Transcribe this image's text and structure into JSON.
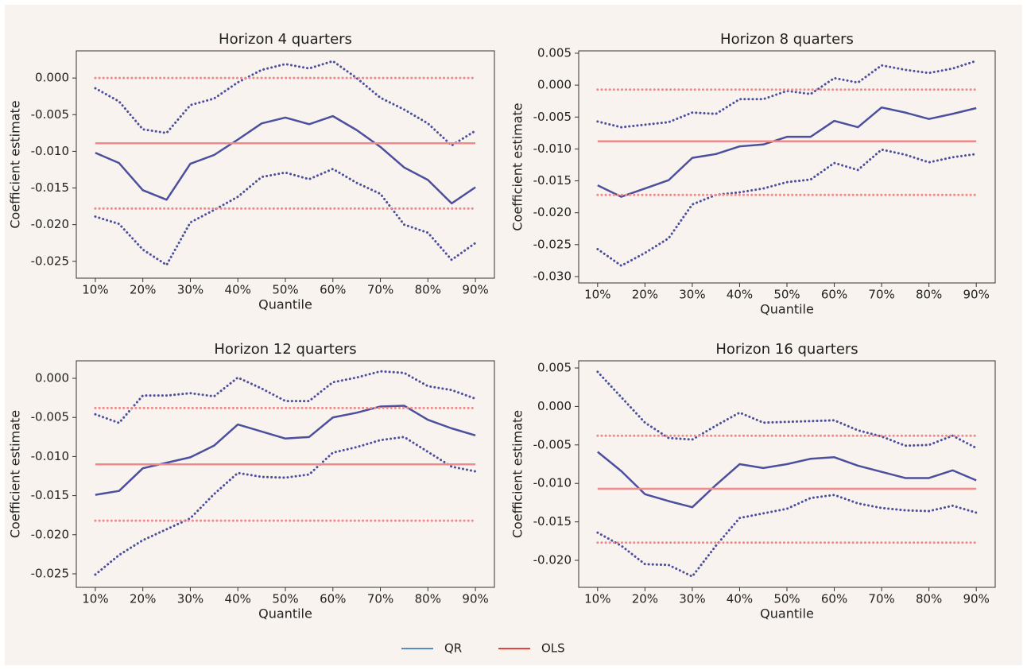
{
  "chart_data": [
    {
      "type": "line",
      "title": "Horizon 4 quarters",
      "xlabel": "Quantile",
      "ylabel": "Coefficient estimate",
      "x": [
        10,
        15,
        20,
        25,
        30,
        35,
        40,
        45,
        50,
        55,
        60,
        65,
        70,
        75,
        80,
        85,
        90
      ],
      "xlim": [
        6,
        94
      ],
      "ylim": [
        -0.0273,
        0.0037
      ],
      "xticks": [
        {
          "value": 10,
          "label": "10%"
        },
        {
          "value": 20,
          "label": "20%"
        },
        {
          "value": 30,
          "label": "30%"
        },
        {
          "value": 40,
          "label": "40%"
        },
        {
          "value": 50,
          "label": "50%"
        },
        {
          "value": 60,
          "label": "60%"
        },
        {
          "value": 70,
          "label": "70%"
        },
        {
          "value": 80,
          "label": "80%"
        },
        {
          "value": 90,
          "label": "90%"
        }
      ],
      "yticks": [
        {
          "value": -0.025,
          "label": "-0.025"
        },
        {
          "value": -0.02,
          "label": "-0.020"
        },
        {
          "value": -0.015,
          "label": "-0.015"
        },
        {
          "value": -0.01,
          "label": "-0.010"
        },
        {
          "value": -0.005,
          "label": "-0.005"
        },
        {
          "value": 0,
          "label": "0.000"
        }
      ],
      "series": [
        {
          "color": "#4c4f9e",
          "style": "solid",
          "values": [
            -0.0102,
            -0.0116,
            -0.0153,
            -0.0166,
            -0.0117,
            -0.0105,
            -0.0084,
            -0.0062,
            -0.0054,
            -0.0063,
            -0.0052,
            -0.0071,
            -0.0094,
            -0.0122,
            -0.0139,
            -0.0171,
            -0.0149
          ]
        },
        {
          "color": "#4c4f9e",
          "style": "dotted",
          "values": [
            -0.0014,
            -0.0032,
            -0.007,
            -0.0075,
            -0.0037,
            -0.0028,
            -0.0006,
            0.0011,
            0.0019,
            0.0013,
            0.0023,
            0.0,
            -0.0027,
            -0.0043,
            -0.0062,
            -0.0092,
            -0.0072
          ]
        },
        {
          "color": "#4c4f9e",
          "style": "dotted",
          "values": [
            -0.0189,
            -0.0199,
            -0.0234,
            -0.0255,
            -0.0197,
            -0.018,
            -0.0162,
            -0.0135,
            -0.0129,
            -0.0138,
            -0.0124,
            -0.0143,
            -0.0158,
            -0.02,
            -0.0211,
            -0.0248,
            -0.0225
          ]
        },
        {
          "color": "#f08a8a",
          "style": "solid",
          "values": [
            -0.0089,
            -0.0089,
            -0.0089,
            -0.0089,
            -0.0089,
            -0.0089,
            -0.0089,
            -0.0089,
            -0.0089,
            -0.0089,
            -0.0089,
            -0.0089,
            -0.0089,
            -0.0089,
            -0.0089,
            -0.0089,
            -0.0089
          ]
        },
        {
          "color": "#f08a8a",
          "style": "dotted",
          "values": [
            0.0,
            0.0,
            0.0,
            0.0,
            0.0,
            0.0,
            0.0,
            0.0,
            0.0,
            0.0,
            0.0,
            0.0,
            0.0,
            0.0,
            0.0,
            0.0,
            0.0
          ]
        },
        {
          "color": "#f08a8a",
          "style": "dotted",
          "values": [
            -0.0178,
            -0.0178,
            -0.0178,
            -0.0178,
            -0.0178,
            -0.0178,
            -0.0178,
            -0.0178,
            -0.0178,
            -0.0178,
            -0.0178,
            -0.0178,
            -0.0178,
            -0.0178,
            -0.0178,
            -0.0178,
            -0.0178
          ]
        }
      ]
    },
    {
      "type": "line",
      "title": "Horizon 8 quarters",
      "xlabel": "Quantile",
      "ylabel": "Coefficient estimate",
      "x": [
        10,
        15,
        20,
        25,
        30,
        35,
        40,
        45,
        50,
        55,
        60,
        65,
        70,
        75,
        80,
        85,
        90
      ],
      "xlim": [
        6,
        94
      ],
      "ylim": [
        -0.031,
        0.00537
      ],
      "xticks": [
        {
          "value": 10,
          "label": "10%"
        },
        {
          "value": 20,
          "label": "20%"
        },
        {
          "value": 30,
          "label": "30%"
        },
        {
          "value": 40,
          "label": "40%"
        },
        {
          "value": 50,
          "label": "50%"
        },
        {
          "value": 60,
          "label": "60%"
        },
        {
          "value": 70,
          "label": "70%"
        },
        {
          "value": 80,
          "label": "80%"
        },
        {
          "value": 90,
          "label": "90%"
        }
      ],
      "yticks": [
        {
          "value": -0.03,
          "label": "-0.030"
        },
        {
          "value": -0.025,
          "label": "-0.025"
        },
        {
          "value": -0.02,
          "label": "-0.020"
        },
        {
          "value": -0.015,
          "label": "-0.015"
        },
        {
          "value": -0.01,
          "label": "-0.010"
        },
        {
          "value": -0.005,
          "label": "-0.005"
        },
        {
          "value": 0,
          "label": "0.000"
        },
        {
          "value": 0.005,
          "label": "0.005"
        }
      ],
      "series": [
        {
          "color": "#4c4f9e",
          "style": "solid",
          "values": [
            -0.0157,
            -0.0175,
            -0.0162,
            -0.0149,
            -0.0114,
            -0.0108,
            -0.0096,
            -0.0093,
            -0.0081,
            -0.0081,
            -0.0056,
            -0.0066,
            -0.0035,
            -0.0043,
            -0.0053,
            -0.0045,
            -0.0036
          ]
        },
        {
          "color": "#4c4f9e",
          "style": "dotted",
          "values": [
            -0.0057,
            -0.0066,
            -0.0062,
            -0.0058,
            -0.0043,
            -0.0045,
            -0.0022,
            -0.0022,
            -0.0009,
            -0.0014,
            0.0011,
            0.0004,
            0.0031,
            0.0024,
            0.0019,
            0.0026,
            0.0038
          ]
        },
        {
          "color": "#4c4f9e",
          "style": "dotted",
          "values": [
            -0.0257,
            -0.0283,
            -0.0263,
            -0.024,
            -0.0187,
            -0.0172,
            -0.0168,
            -0.0162,
            -0.0152,
            -0.0148,
            -0.0122,
            -0.0133,
            -0.0101,
            -0.0109,
            -0.0121,
            -0.0113,
            -0.0108
          ]
        },
        {
          "color": "#f08a8a",
          "style": "solid",
          "values": [
            -0.0088,
            -0.0088,
            -0.0088,
            -0.0088,
            -0.0088,
            -0.0088,
            -0.0088,
            -0.0088,
            -0.0088,
            -0.0088,
            -0.0088,
            -0.0088,
            -0.0088,
            -0.0088,
            -0.0088,
            -0.0088,
            -0.0088
          ]
        },
        {
          "color": "#f08a8a",
          "style": "dotted",
          "values": [
            -0.0007,
            -0.0007,
            -0.0007,
            -0.0007,
            -0.0007,
            -0.0007,
            -0.0007,
            -0.0007,
            -0.0007,
            -0.0007,
            -0.0007,
            -0.0007,
            -0.0007,
            -0.0007,
            -0.0007,
            -0.0007,
            -0.0007
          ]
        },
        {
          "color": "#f08a8a",
          "style": "dotted",
          "values": [
            -0.0172,
            -0.0172,
            -0.0172,
            -0.0172,
            -0.0172,
            -0.0172,
            -0.0172,
            -0.0172,
            -0.0172,
            -0.0172,
            -0.0172,
            -0.0172,
            -0.0172,
            -0.0172,
            -0.0172,
            -0.0172,
            -0.0172
          ]
        }
      ]
    },
    {
      "type": "line",
      "title": "Horizon 12 quarters",
      "xlabel": "Quantile",
      "ylabel": "Coefficient estimate",
      "x": [
        10,
        15,
        20,
        25,
        30,
        35,
        40,
        45,
        50,
        55,
        60,
        65,
        70,
        75,
        80,
        85,
        90
      ],
      "xlim": [
        6,
        94
      ],
      "ylim": [
        -0.02673,
        0.00224
      ],
      "xticks": [
        {
          "value": 10,
          "label": "10%"
        },
        {
          "value": 20,
          "label": "20%"
        },
        {
          "value": 30,
          "label": "30%"
        },
        {
          "value": 40,
          "label": "40%"
        },
        {
          "value": 50,
          "label": "50%"
        },
        {
          "value": 60,
          "label": "60%"
        },
        {
          "value": 70,
          "label": "70%"
        },
        {
          "value": 80,
          "label": "80%"
        },
        {
          "value": 90,
          "label": "90%"
        }
      ],
      "yticks": [
        {
          "value": -0.025,
          "label": "-0.025"
        },
        {
          "value": -0.02,
          "label": "-0.020"
        },
        {
          "value": -0.015,
          "label": "-0.015"
        },
        {
          "value": -0.01,
          "label": "-0.010"
        },
        {
          "value": -0.005,
          "label": "-0.005"
        },
        {
          "value": 0,
          "label": "0.000"
        }
      ],
      "series": [
        {
          "color": "#4c4f9e",
          "style": "solid",
          "values": [
            -0.0149,
            -0.0144,
            -0.0115,
            -0.0108,
            -0.0101,
            -0.0086,
            -0.0059,
            -0.0068,
            -0.0077,
            -0.0075,
            -0.005,
            -0.0044,
            -0.0036,
            -0.0035,
            -0.0053,
            -0.0064,
            -0.0073
          ]
        },
        {
          "color": "#4c4f9e",
          "style": "dotted",
          "values": [
            -0.0046,
            -0.0057,
            -0.0022,
            -0.0022,
            -0.0019,
            -0.0023,
            0.0001,
            -0.0013,
            -0.0029,
            -0.0029,
            -0.0005,
            0.0001,
            0.0009,
            0.0007,
            -0.001,
            -0.0015,
            -0.0026
          ]
        },
        {
          "color": "#4c4f9e",
          "style": "dotted",
          "values": [
            -0.0251,
            -0.0226,
            -0.0207,
            -0.0193,
            -0.0179,
            -0.0148,
            -0.0121,
            -0.0126,
            -0.0127,
            -0.0123,
            -0.0095,
            -0.0088,
            -0.0079,
            -0.0075,
            -0.0094,
            -0.0113,
            -0.0119
          ]
        },
        {
          "color": "#f08a8a",
          "style": "solid",
          "values": [
            -0.011,
            -0.011,
            -0.011,
            -0.011,
            -0.011,
            -0.011,
            -0.011,
            -0.011,
            -0.011,
            -0.011,
            -0.011,
            -0.011,
            -0.011,
            -0.011,
            -0.011,
            -0.011,
            -0.011
          ]
        },
        {
          "color": "#f08a8a",
          "style": "dotted",
          "values": [
            -0.0038,
            -0.0038,
            -0.0038,
            -0.0038,
            -0.0038,
            -0.0038,
            -0.0038,
            -0.0038,
            -0.0038,
            -0.0038,
            -0.0038,
            -0.0038,
            -0.0038,
            -0.0038,
            -0.0038,
            -0.0038,
            -0.0038
          ]
        },
        {
          "color": "#f08a8a",
          "style": "dotted",
          "values": [
            -0.0182,
            -0.0182,
            -0.0182,
            -0.0182,
            -0.0182,
            -0.0182,
            -0.0182,
            -0.0182,
            -0.0182,
            -0.0182,
            -0.0182,
            -0.0182,
            -0.0182,
            -0.0182,
            -0.0182,
            -0.0182,
            -0.0182
          ]
        }
      ]
    },
    {
      "type": "line",
      "title": "Horizon 16 quarters",
      "xlabel": "Quantile",
      "ylabel": "Coefficient estimate",
      "x": [
        10,
        15,
        20,
        25,
        30,
        35,
        40,
        45,
        50,
        55,
        60,
        65,
        70,
        75,
        80,
        85,
        90
      ],
      "xlim": [
        6,
        94
      ],
      "ylim": [
        -0.02351,
        0.00593
      ],
      "xticks": [
        {
          "value": 10,
          "label": "10%"
        },
        {
          "value": 20,
          "label": "20%"
        },
        {
          "value": 30,
          "label": "30%"
        },
        {
          "value": 40,
          "label": "40%"
        },
        {
          "value": 50,
          "label": "50%"
        },
        {
          "value": 60,
          "label": "60%"
        },
        {
          "value": 70,
          "label": "70%"
        },
        {
          "value": 80,
          "label": "80%"
        },
        {
          "value": 90,
          "label": "90%"
        }
      ],
      "yticks": [
        {
          "value": -0.02,
          "label": "-0.020"
        },
        {
          "value": -0.015,
          "label": "-0.015"
        },
        {
          "value": -0.01,
          "label": "-0.010"
        },
        {
          "value": -0.005,
          "label": "-0.005"
        },
        {
          "value": 0,
          "label": "0.000"
        },
        {
          "value": 0.005,
          "label": "0.005"
        }
      ],
      "series": [
        {
          "color": "#4c4f9e",
          "style": "solid",
          "values": [
            -0.0059,
            -0.0084,
            -0.0114,
            -0.0123,
            -0.0131,
            -0.0102,
            -0.0075,
            -0.008,
            -0.0075,
            -0.0068,
            -0.0066,
            -0.0077,
            -0.0085,
            -0.0093,
            -0.0093,
            -0.0083,
            -0.0096
          ]
        },
        {
          "color": "#4c4f9e",
          "style": "dotted",
          "values": [
            0.0045,
            0.0012,
            -0.0021,
            -0.0041,
            -0.0043,
            -0.0025,
            -0.0008,
            -0.0021,
            -0.002,
            -0.0019,
            -0.0018,
            -0.0031,
            -0.0039,
            -0.0051,
            -0.005,
            -0.0038,
            -0.0054
          ]
        },
        {
          "color": "#4c4f9e",
          "style": "dotted",
          "values": [
            -0.0164,
            -0.0181,
            -0.0205,
            -0.0206,
            -0.0221,
            -0.0181,
            -0.0145,
            -0.0139,
            -0.0133,
            -0.0119,
            -0.0115,
            -0.0126,
            -0.0132,
            -0.0135,
            -0.0136,
            -0.0129,
            -0.0138
          ]
        },
        {
          "color": "#f08a8a",
          "style": "solid",
          "values": [
            -0.0107,
            -0.0107,
            -0.0107,
            -0.0107,
            -0.0107,
            -0.0107,
            -0.0107,
            -0.0107,
            -0.0107,
            -0.0107,
            -0.0107,
            -0.0107,
            -0.0107,
            -0.0107,
            -0.0107,
            -0.0107,
            -0.0107
          ]
        },
        {
          "color": "#f08a8a",
          "style": "dotted",
          "values": [
            -0.0038,
            -0.0038,
            -0.0038,
            -0.0038,
            -0.0038,
            -0.0038,
            -0.0038,
            -0.0038,
            -0.0038,
            -0.0038,
            -0.0038,
            -0.0038,
            -0.0038,
            -0.0038,
            -0.0038,
            -0.0038,
            -0.0038
          ]
        },
        {
          "color": "#f08a8a",
          "style": "dotted",
          "values": [
            -0.0177,
            -0.0177,
            -0.0177,
            -0.0177,
            -0.0177,
            -0.0177,
            -0.0177,
            -0.0177,
            -0.0177,
            -0.0177,
            -0.0177,
            -0.0177,
            -0.0177,
            -0.0177,
            -0.0177,
            -0.0177,
            -0.0177
          ]
        }
      ]
    }
  ],
  "legend": [
    {
      "label": "QR",
      "color": "#5a8bc8"
    },
    {
      "label": "OLS",
      "color": "#e8413c"
    }
  ]
}
